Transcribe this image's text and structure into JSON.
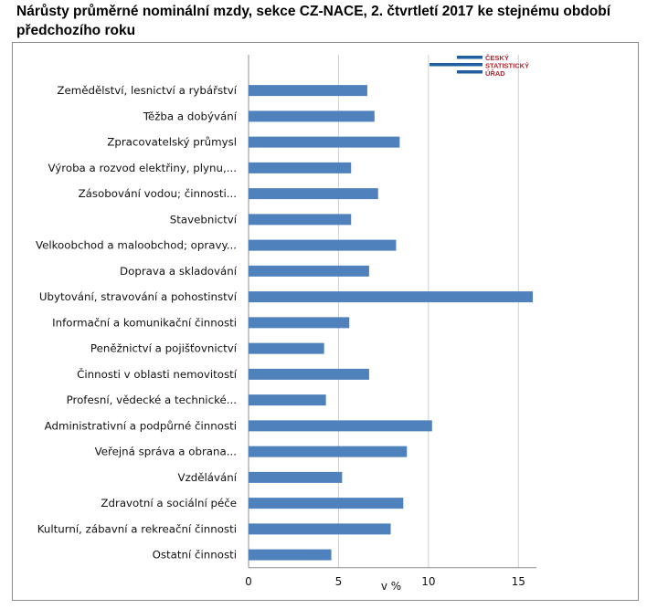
{
  "title": "Nárůsty průměrné nominální mzdy, sekce CZ-NACE, 2. čtvrtletí 2017 ke stejnému období předchozího roku",
  "logo": {
    "lines": [
      "ČESKÝ",
      "STATISTICKÝ",
      "ÚŘAD"
    ],
    "bar_color": "#1f5f9f",
    "text_color": "#b0262c"
  },
  "chart_data": {
    "type": "bar",
    "orientation": "horizontal",
    "categories": [
      "Zemědělství, lesnictví a rybářství",
      "Těžba a dobývání",
      "Zpracovatelský průmysl",
      "Výroba a rozvod elektřiny, plynu,...",
      "Zásobování vodou; činnosti...",
      "Stavebnictví",
      "Velkoobchod a maloobchod; opravy...",
      "Doprava a skladování",
      "Ubytování, stravování a pohostinství",
      "Informační a komunikační činnosti",
      "Peněžnictví a pojišťovnictví",
      "Činnosti v oblasti nemovitostí",
      "Profesní, vědecké a technické...",
      "Administrativní a podpůrné činnosti",
      "Veřejná správa a obrana...",
      "Vzdělávání",
      "Zdravotní a sociální péče",
      "Kulturní, zábavní a rekreační činnosti",
      "Ostatní činnosti"
    ],
    "values": [
      6.6,
      7.0,
      8.4,
      5.7,
      7.2,
      5.7,
      8.2,
      6.7,
      15.8,
      5.6,
      4.2,
      6.7,
      4.3,
      10.2,
      8.8,
      5.2,
      8.6,
      7.9,
      4.6
    ],
    "xlim": [
      0,
      16
    ],
    "xticks": [
      0,
      5,
      10,
      15
    ],
    "xlabel": "v %",
    "ylabel": "",
    "bar_color": "#4f81bd",
    "grid": "vertical",
    "grid_color": "#d0d0d0"
  }
}
